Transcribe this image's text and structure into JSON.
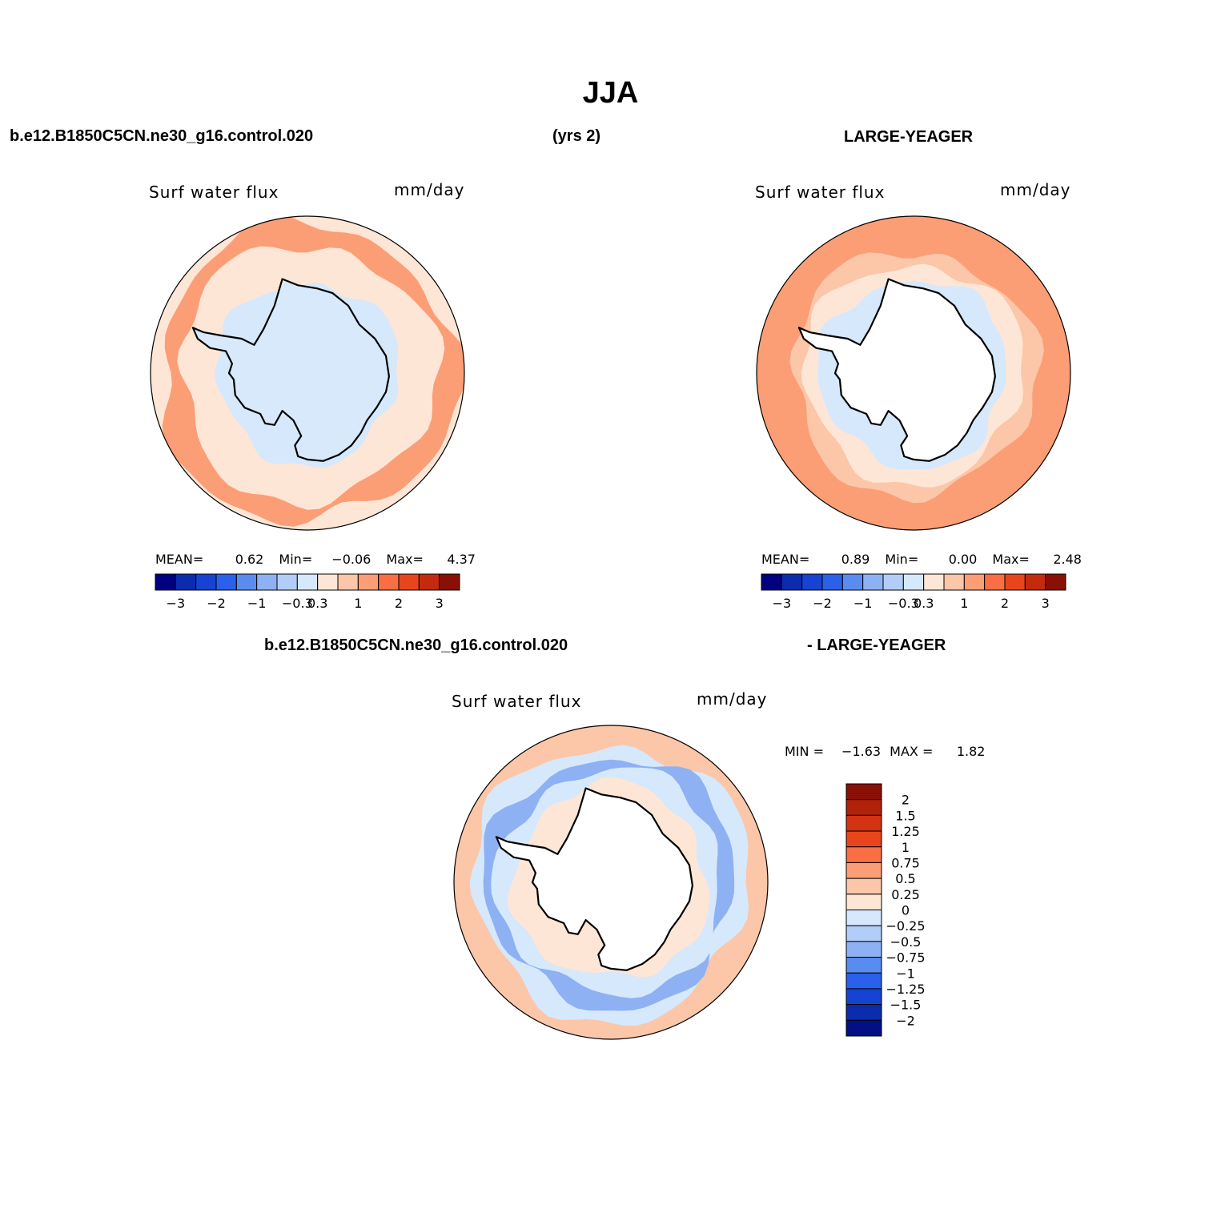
{
  "title": "JJA",
  "header": {
    "case_name": "b.e12.B1850C5CN.ne30_g16.control.020",
    "years": "(yrs 2)",
    "reference": "LARGE-YEAGER"
  },
  "diff_header": {
    "case_name": "b.e12.B1850C5CN.ne30_g16.control.020",
    "reference": "- LARGE-YEAGER"
  },
  "colors": {
    "pos_ramp": [
      "#fee6d6",
      "#fcc6a8",
      "#fb9e76",
      "#f96e42",
      "#e8451c",
      "#d23311",
      "#a51d0b",
      "#6e0a05"
    ],
    "neg_ramp": [
      "#d6e8fb",
      "#b2cdf7",
      "#8eb1f3",
      "#5a8cf0",
      "#2b60ea",
      "#1643d2",
      "#0b2cae",
      "#030f85"
    ],
    "land_diff": "#ffffff",
    "land_case": "#d8e9fb",
    "land_ref": "#ffffff"
  },
  "chart_data": [
    {
      "type": "heatmap",
      "projection": "south-polar-stereographic",
      "panel": "top-left",
      "variable": "Surf water flux",
      "units": "mm/day",
      "stats": {
        "mean_label": "MEAN=",
        "mean": "0.62",
        "min_label": "Min=",
        "min": "−0.06",
        "max_label": "Max=",
        "max": "4.37"
      },
      "colorbar": {
        "orientation": "horizontal",
        "levels": [
          -3.5,
          -3,
          -2.5,
          -2,
          -1.5,
          -1,
          -0.6,
          -0.3,
          0.3,
          0.6,
          1,
          1.5,
          2,
          2.5,
          3,
          3.5
        ],
        "tick_labels": [
          "−3",
          "−2",
          "−1",
          "−0.3",
          "0.3",
          "1",
          "2",
          "3"
        ],
        "colors": [
          "#000080",
          "#0b2cae",
          "#1643d2",
          "#2b60ea",
          "#5a8cf0",
          "#8eb1f3",
          "#b2cdf7",
          "#d6e8fb",
          "#fee6d6",
          "#fcc6a8",
          "#fb9e76",
          "#f96e42",
          "#e8451c",
          "#c42b0e",
          "#8a1006"
        ]
      },
      "rings": [
        {
          "level": 0.3,
          "r_frac": 1.0
        },
        {
          "level": 1.0,
          "r_frac": 0.95
        },
        {
          "level": 0.3,
          "r_frac": 0.82
        },
        {
          "level": -0.1,
          "r_frac": 0.58
        }
      ]
    },
    {
      "type": "heatmap",
      "projection": "south-polar-stereographic",
      "panel": "top-right",
      "variable": "Surf water flux",
      "units": "mm/day",
      "stats": {
        "mean_label": "MEAN=",
        "mean": "0.89",
        "min_label": "Min=",
        "min": "0.00",
        "max_label": "Max=",
        "max": "2.48"
      },
      "colorbar": {
        "orientation": "horizontal",
        "levels": [
          -3.5,
          -3,
          -2.5,
          -2,
          -1.5,
          -1,
          -0.6,
          -0.3,
          0.3,
          0.6,
          1,
          1.5,
          2,
          2.5,
          3,
          3.5
        ],
        "tick_labels": [
          "−3",
          "−2",
          "−1",
          "−0.3",
          "0.3",
          "1",
          "2",
          "3"
        ],
        "colors": [
          "#000080",
          "#0b2cae",
          "#1643d2",
          "#2b60ea",
          "#5a8cf0",
          "#8eb1f3",
          "#b2cdf7",
          "#d6e8fb",
          "#fee6d6",
          "#fcc6a8",
          "#fb9e76",
          "#f96e42",
          "#e8451c",
          "#c42b0e",
          "#8a1006"
        ]
      },
      "rings": [
        {
          "level": 1.0,
          "r_frac": 1.0
        },
        {
          "level": 0.6,
          "r_frac": 0.78
        },
        {
          "level": 0.3,
          "r_frac": 0.7
        },
        {
          "level": 0.1,
          "r_frac": 0.6
        }
      ]
    },
    {
      "type": "heatmap",
      "projection": "south-polar-stereographic",
      "panel": "bottom",
      "variable": "Surf water flux",
      "units": "mm/day",
      "stats": {
        "min_label": "MIN =",
        "min": "−1.63",
        "max_label": "MAX =",
        "max": "1.82"
      },
      "colorbar": {
        "orientation": "vertical",
        "levels": [
          -2.25,
          -2,
          -1.5,
          -1.25,
          -1,
          -0.75,
          -0.5,
          -0.25,
          0,
          0.25,
          0.5,
          0.75,
          1,
          1.25,
          1.5,
          2,
          2.25
        ],
        "tick_labels": [
          "2",
          "1.5",
          "1.25",
          "1",
          "0.75",
          "0.5",
          "0.25",
          "0",
          "−0.25",
          "−0.5",
          "−0.75",
          "−1",
          "−1.25",
          "−1.5",
          "−2"
        ],
        "colors_top_to_bottom": [
          "#8a1006",
          "#b0220a",
          "#d23311",
          "#e8451c",
          "#f96e42",
          "#fb9e76",
          "#fcc6a8",
          "#fee6d6",
          "#d6e8fb",
          "#b2cdf7",
          "#8eb1f3",
          "#5a8cf0",
          "#2b60ea",
          "#1643d2",
          "#0b2cae",
          "#030f85"
        ]
      },
      "rings": [
        {
          "level": 0.25,
          "r_frac": 1.0
        },
        {
          "level": -0.25,
          "r_frac": 0.88
        },
        {
          "level": -0.75,
          "r_frac": 0.8
        },
        {
          "level": -0.25,
          "r_frac": 0.72
        },
        {
          "level": 0.0,
          "r_frac": 0.62
        }
      ]
    }
  ]
}
